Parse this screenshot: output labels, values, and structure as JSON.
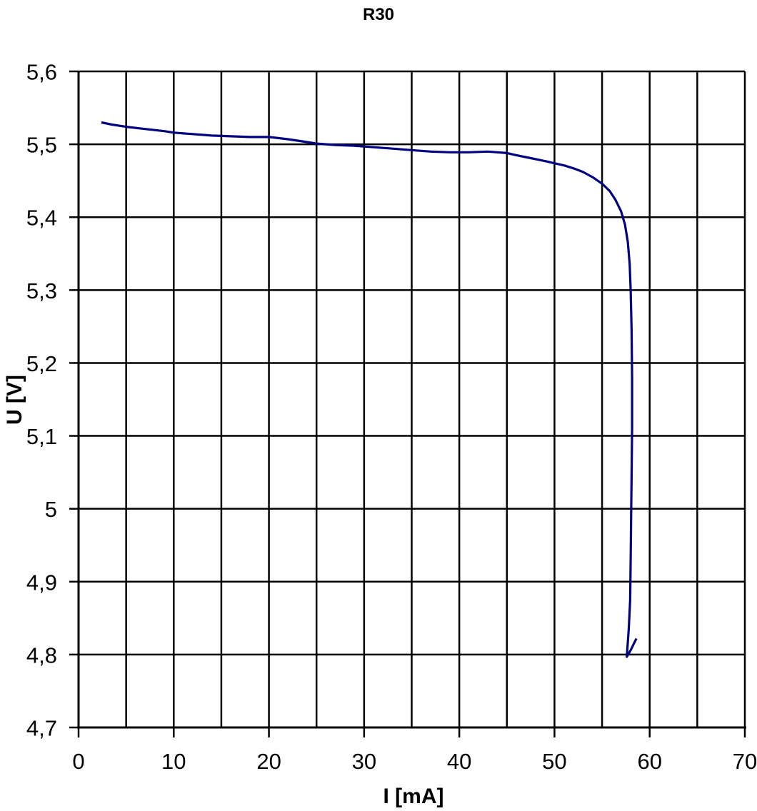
{
  "window": {
    "background": "#ffffff"
  },
  "chart_data": {
    "type": "line",
    "title": "R30",
    "xlabel": "I [mA]",
    "ylabel": "U [V]",
    "xlim": [
      0,
      70
    ],
    "ylim": [
      4.7,
      5.6
    ],
    "x_tick_step": 10,
    "y_tick_step": 0.1,
    "x_grid_step": 5,
    "y_grid_step": 0.1,
    "grid": true,
    "legend": "none",
    "decimal_separator": ",",
    "x_ticks": [
      {
        "v": 0,
        "label": "0"
      },
      {
        "v": 10,
        "label": "10"
      },
      {
        "v": 20,
        "label": "20"
      },
      {
        "v": 30,
        "label": "30"
      },
      {
        "v": 40,
        "label": "40"
      },
      {
        "v": 50,
        "label": "50"
      },
      {
        "v": 60,
        "label": "60"
      },
      {
        "v": 70,
        "label": "70"
      }
    ],
    "y_ticks": [
      {
        "v": 5.6,
        "label": "5,6"
      },
      {
        "v": 5.5,
        "label": "5,5"
      },
      {
        "v": 5.4,
        "label": "5,4"
      },
      {
        "v": 5.3,
        "label": "5,3"
      },
      {
        "v": 5.2,
        "label": "5,2"
      },
      {
        "v": 5.1,
        "label": "5,1"
      },
      {
        "v": 5.0,
        "label": "5"
      },
      {
        "v": 4.9,
        "label": "4,9"
      },
      {
        "v": 4.8,
        "label": "4,8"
      },
      {
        "v": 4.7,
        "label": "4,7"
      }
    ],
    "colors": {
      "line": "#000080",
      "grid": "#000000",
      "text": "#000000",
      "background": "#ffffff"
    },
    "series": [
      {
        "name": "R30",
        "points": [
          [
            2.4,
            5.53
          ],
          [
            3.5,
            5.527
          ],
          [
            5,
            5.524
          ],
          [
            7,
            5.521
          ],
          [
            9,
            5.518
          ],
          [
            10,
            5.516
          ],
          [
            12,
            5.514
          ],
          [
            14,
            5.512
          ],
          [
            16,
            5.511
          ],
          [
            18,
            5.51
          ],
          [
            20,
            5.51
          ],
          [
            22,
            5.507
          ],
          [
            24,
            5.503
          ],
          [
            25,
            5.501
          ],
          [
            27,
            5.499
          ],
          [
            29,
            5.498
          ],
          [
            31,
            5.496
          ],
          [
            33,
            5.494
          ],
          [
            35,
            5.492
          ],
          [
            37,
            5.49
          ],
          [
            39,
            5.489
          ],
          [
            41,
            5.489
          ],
          [
            43,
            5.49
          ],
          [
            45,
            5.488
          ],
          [
            46,
            5.485
          ],
          [
            47.5,
            5.481
          ],
          [
            49,
            5.477
          ],
          [
            50,
            5.474
          ],
          [
            51,
            5.471
          ],
          [
            52,
            5.467
          ],
          [
            53,
            5.462
          ],
          [
            54,
            5.455
          ],
          [
            55,
            5.446
          ],
          [
            55.8,
            5.436
          ],
          [
            56.4,
            5.424
          ],
          [
            57,
            5.408
          ],
          [
            57.4,
            5.39
          ],
          [
            57.7,
            5.366
          ],
          [
            57.9,
            5.336
          ],
          [
            58.0,
            5.3
          ],
          [
            58.1,
            5.245
          ],
          [
            58.15,
            5.18
          ],
          [
            58.15,
            5.11
          ],
          [
            58.1,
            5.045
          ],
          [
            58.05,
            4.985
          ],
          [
            58.0,
            4.93
          ],
          [
            57.95,
            4.875
          ],
          [
            57.8,
            4.835
          ],
          [
            57.6,
            4.797
          ],
          [
            58.0,
            4.806
          ],
          [
            58.3,
            4.814
          ],
          [
            58.6,
            4.822
          ]
        ]
      }
    ]
  }
}
